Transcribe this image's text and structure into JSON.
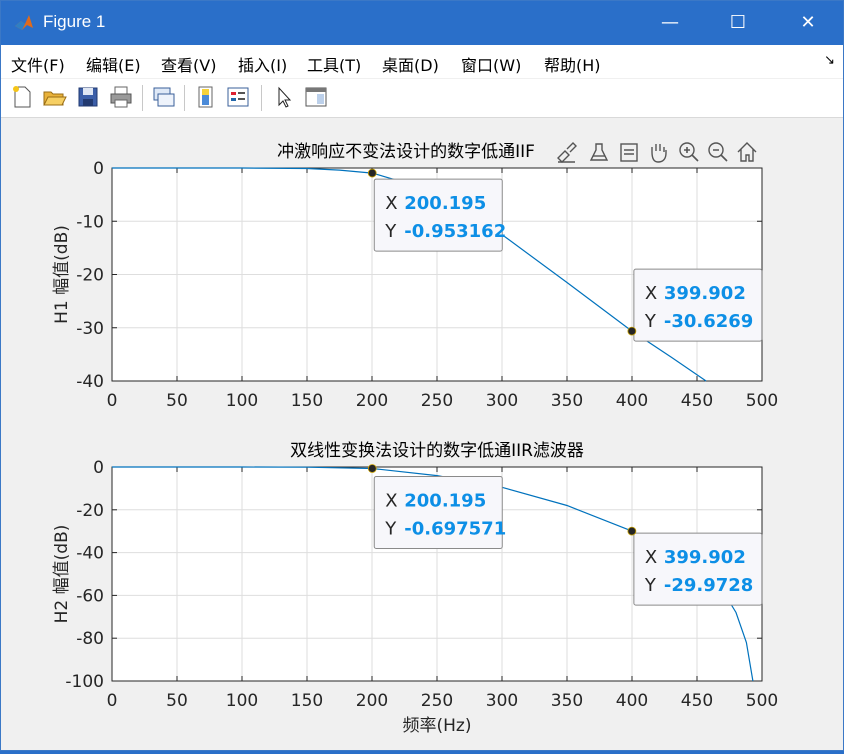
{
  "window": {
    "title": "Figure 1",
    "minimize": "—",
    "maximize": "☐",
    "close": "✕"
  },
  "menu": [
    "文件(F)",
    "编辑(E)",
    "查看(V)",
    "插入(I)",
    "工具(T)",
    "桌面(D)",
    "窗口(W)",
    "帮助(H)"
  ],
  "menu_overflow": "↘",
  "toolbar": [
    "new-figure-icon",
    "open-file-icon",
    "save-icon",
    "print-icon",
    "link-plot-icon",
    "insert-colorbar-icon",
    "insert-legend-icon",
    "pointer-icon",
    "property-inspector-icon"
  ],
  "axes_toolbar": [
    "brush-icon",
    "data-tips-icon",
    "zoom-out-box-icon",
    "pan-hand-icon",
    "zoom-in-icon",
    "zoom-out-icon",
    "home-icon"
  ],
  "chart_data": [
    {
      "type": "line",
      "title": "冲激响应不变法设计的数字低通IIF",
      "xlabel": "",
      "ylabel": "H1 幅值(dB)",
      "xlim": [
        0,
        500
      ],
      "ylim": [
        -40,
        0
      ],
      "xticks": [
        0,
        50,
        100,
        150,
        200,
        250,
        300,
        350,
        400,
        450,
        500
      ],
      "yticks": [
        0,
        -10,
        -20,
        -30,
        -40
      ],
      "grid": true,
      "series": [
        {
          "color": "#0072bd",
          "x": [
            0,
            100,
            150,
            175,
            200.195,
            250,
            300,
            350,
            399.902,
            430,
            457
          ],
          "y": [
            0,
            0,
            -0.1,
            -0.4,
            -0.953162,
            -4.5,
            -12.5,
            -21.5,
            -30.6269,
            -35.5,
            -40
          ]
        }
      ],
      "datatips": [
        {
          "x_label": "X",
          "x": "200.195",
          "y_label": "Y",
          "y": "-0.953162"
        },
        {
          "x_label": "X",
          "x": "399.902",
          "y_label": "Y",
          "y": "-30.6269"
        }
      ]
    },
    {
      "type": "line",
      "title": "双线性变换法设计的数字低通IIR滤波器",
      "xlabel": "频率(Hz)",
      "ylabel": "H2 幅值(dB)",
      "xlim": [
        0,
        500
      ],
      "ylim": [
        -100,
        0
      ],
      "xticks": [
        0,
        50,
        100,
        150,
        200,
        250,
        300,
        350,
        400,
        450,
        500
      ],
      "yticks": [
        0,
        -20,
        -40,
        -60,
        -80,
        -100
      ],
      "grid": true,
      "series": [
        {
          "color": "#0072bd",
          "x": [
            0,
            100,
            150,
            200.195,
            250,
            300,
            350,
            399.902,
            430,
            450,
            470,
            480,
            488,
            493
          ],
          "y": [
            0,
            0,
            -0.1,
            -0.697571,
            -4.0,
            -9.5,
            -18.0,
            -29.9728,
            -39.0,
            -47.0,
            -58.0,
            -68.0,
            -82.0,
            -100
          ]
        }
      ],
      "datatips": [
        {
          "x_label": "X",
          "x": "200.195",
          "y_label": "Y",
          "y": "-0.697571"
        },
        {
          "x_label": "X",
          "x": "399.902",
          "y_label": "Y",
          "y": "-29.9728"
        }
      ]
    }
  ]
}
